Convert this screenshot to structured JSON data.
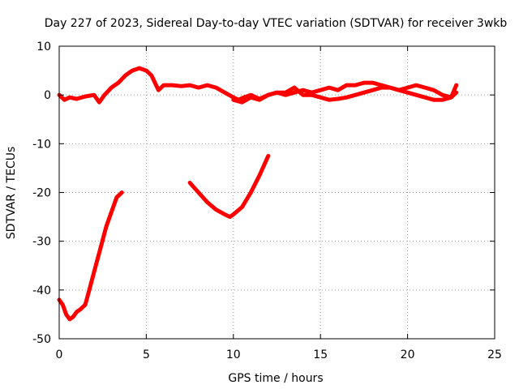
{
  "chart_data": {
    "type": "line",
    "title": "Day 227 of 2023, Sidereal Day-to-day VTEC variation (SDTVAR) for receiver 3wkb",
    "xlabel": "GPS time / hours",
    "ylabel": "SDTVAR / TECUs",
    "xlim": [
      0,
      25
    ],
    "ylim": [
      -50,
      10
    ],
    "grid": true,
    "x_ticks": [
      0,
      5,
      10,
      15,
      20,
      25
    ],
    "x_tick_labels": [
      "0",
      "5",
      "10",
      "15",
      "20",
      "25"
    ],
    "y_ticks": [
      10,
      0,
      -10,
      -20,
      -30,
      -40,
      -50
    ],
    "y_tick_labels": [
      "10",
      "0",
      "-10",
      "-20",
      "-30",
      "-40",
      "-50"
    ],
    "series_color": "#ff0000",
    "series": [
      {
        "name": "main-a",
        "x": [
          0,
          0.3,
          0.6,
          1.0,
          1.5,
          2.0,
          2.3,
          2.6,
          3.0,
          3.4,
          3.8,
          4.2,
          4.6,
          5.0,
          5.3,
          5.7,
          6.0,
          6.5,
          7.0,
          7.5,
          8.0,
          8.5,
          9.0,
          9.5,
          10.0,
          10.3,
          10.6,
          11.0,
          11.5,
          12.0
        ],
        "y": [
          0,
          -1,
          -0.5,
          -0.8,
          -0.3,
          0,
          -1.5,
          0,
          1.5,
          2.5,
          4,
          5,
          5.5,
          5,
          4,
          1,
          2,
          2,
          1.8,
          2,
          1.5,
          2,
          1.5,
          0.5,
          -0.5,
          -1,
          -0.5,
          0,
          -0.8,
          0
        ]
      },
      {
        "name": "main-b",
        "x": [
          12.0,
          12.5,
          13.0,
          13.5,
          14.0,
          14.5,
          15.0,
          15.5,
          16.0,
          16.5,
          17.0,
          17.5,
          18.0,
          18.5,
          19.0,
          19.5,
          20.0,
          20.5,
          21.0,
          21.5,
          22.0,
          22.5,
          22.8
        ],
        "y": [
          0,
          0.5,
          0,
          0.5,
          1,
          0.5,
          1,
          1.5,
          1,
          2,
          2,
          2.5,
          2.5,
          2,
          1.5,
          1,
          1.5,
          2,
          1.5,
          1,
          0,
          -0.5,
          0.5
        ]
      },
      {
        "name": "main-c",
        "x": [
          10.0,
          10.5,
          11.0,
          11.5,
          12.0,
          12.5,
          13.0,
          13.5,
          14.0,
          14.5,
          15.0,
          15.5,
          16.0,
          16.5,
          17.0,
          17.5,
          18.0,
          18.5,
          19.0,
          19.5,
          20.0,
          20.5,
          21.0,
          21.5,
          22.0,
          22.5,
          22.8
        ],
        "y": [
          -1,
          -1.5,
          -0.5,
          -1,
          0,
          0.5,
          0.5,
          1.5,
          0,
          0,
          -0.5,
          -1,
          -0.8,
          -0.5,
          0,
          0.5,
          1,
          1.5,
          1.5,
          1,
          0.5,
          0,
          -0.5,
          -1,
          -1,
          -0.5,
          2
        ]
      },
      {
        "name": "arc-early",
        "x": [
          0,
          0.2,
          0.4,
          0.6,
          0.8,
          1.0,
          1.2,
          1.5,
          1.8,
          2.1,
          2.4,
          2.7,
          3.0,
          3.3,
          3.6
        ],
        "y": [
          -42,
          -43,
          -45,
          -46,
          -45.5,
          -44.5,
          -44,
          -43,
          -39,
          -35,
          -31,
          -27,
          -24,
          -21,
          -20
        ]
      },
      {
        "name": "arc-mid",
        "x": [
          7.5,
          8.0,
          8.5,
          9.0,
          9.5,
          9.8,
          10.0,
          10.5,
          11.0,
          11.5,
          12.0
        ],
        "y": [
          -18,
          -20,
          -22,
          -23.5,
          -24.5,
          -25,
          -24.5,
          -23,
          -20,
          -16.5,
          -12.5
        ]
      }
    ]
  }
}
